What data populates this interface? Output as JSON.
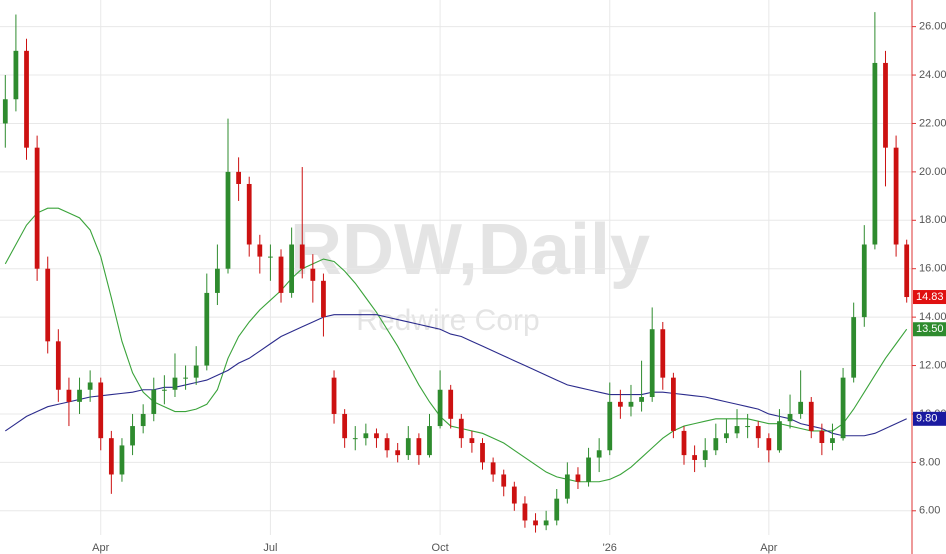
{
  "chart_data": {
    "type": "candlestick",
    "watermark": "RDW,Daily",
    "subtitle": "Redwire Corp",
    "categories": [
      null,
      null,
      null,
      null,
      null,
      null,
      null,
      null,
      null,
      "Apr",
      null,
      null,
      null,
      null,
      null,
      null,
      null,
      null,
      null,
      null,
      null,
      null,
      null,
      null,
      null,
      "Jul",
      null,
      null,
      null,
      null,
      null,
      null,
      null,
      null,
      null,
      null,
      null,
      null,
      null,
      null,
      null,
      "Oct",
      null,
      null,
      null,
      null,
      null,
      null,
      null,
      null,
      null,
      null,
      null,
      null,
      null,
      null,
      null,
      "'26",
      null,
      null,
      null,
      null,
      null,
      null,
      null,
      null,
      null,
      null,
      null,
      null,
      null,
      null,
      "Apr",
      null,
      null,
      null,
      null,
      null,
      null,
      null,
      null,
      null,
      null,
      null,
      null,
      null
    ],
    "open": [
      22,
      23,
      25,
      21,
      16,
      13,
      11,
      10.5,
      11,
      11.3,
      9,
      7.5,
      8.7,
      9.5,
      10,
      11,
      11,
      11.5,
      11.5,
      12,
      15,
      16,
      20,
      19.5,
      17,
      16.5,
      16.5,
      15,
      17,
      16,
      15.5,
      11.5,
      10,
      9,
      9,
      9.2,
      9,
      8.5,
      8.3,
      9,
      8.3,
      9.5,
      11,
      9.8,
      9,
      8.8,
      8,
      7.5,
      7,
      6.3,
      5.6,
      5.4,
      5.6,
      6.5,
      7.5,
      7.2,
      8.2,
      8.5,
      10.5,
      10.3,
      10.5,
      10.7,
      13.5,
      11.5,
      9.3,
      8.3,
      8.1,
      8.5,
      9,
      9.2,
      9.5,
      9.5,
      9,
      8.5,
      9.7,
      10,
      10.5,
      9.3,
      8.8,
      9,
      11.5,
      14,
      17,
      24.5,
      21,
      17
    ],
    "high": [
      24,
      26.5,
      25.5,
      21.5,
      16.5,
      13.5,
      11.5,
      11.5,
      11.8,
      11.5,
      9.3,
      9,
      10,
      10.4,
      11.5,
      11.6,
      12.5,
      12,
      12.8,
      15.8,
      17,
      22.2,
      20.6,
      19.8,
      17.4,
      17,
      16.8,
      17.7,
      20.2,
      16.6,
      15.8,
      11.8,
      10.2,
      9.5,
      9.6,
      9.4,
      9.2,
      8.8,
      9.5,
      9.2,
      10,
      11.8,
      11.2,
      10,
      9.3,
      9,
      8.2,
      7.7,
      7.2,
      6.6,
      5.9,
      6,
      6.9,
      8,
      7.8,
      8.6,
      9,
      11.3,
      11,
      11.2,
      12.2,
      14.4,
      13.8,
      11.7,
      9.5,
      8.7,
      9,
      9.6,
      9.8,
      10.2,
      10,
      9.7,
      9.2,
      10.2,
      10.8,
      11.8,
      10.7,
      9.6,
      9.6,
      11.9,
      14.6,
      17.8,
      26.6,
      25,
      21.5,
      17.2
    ],
    "low": [
      21,
      22.5,
      20.5,
      15.5,
      12.5,
      10.5,
      9.5,
      10,
      10.5,
      8.5,
      6.7,
      7.2,
      8.3,
      9.2,
      9.7,
      10.4,
      10.7,
      11,
      11.2,
      11.8,
      14.5,
      15.8,
      18.8,
      16.5,
      15.8,
      15.5,
      14.6,
      14.8,
      15.6,
      14.6,
      13.2,
      9.6,
      8.6,
      8.5,
      8.7,
      8.6,
      8.2,
      8,
      8.1,
      7.9,
      8.2,
      9.4,
      9.4,
      8.6,
      8.4,
      7.7,
      7.2,
      6.6,
      6,
      5.3,
      5.1,
      5.2,
      5.4,
      6.3,
      6.9,
      7,
      7.6,
      8.3,
      9.8,
      9.9,
      10.1,
      10.5,
      11,
      9,
      7.9,
      7.6,
      7.8,
      8.3,
      8.8,
      9,
      9,
      8.6,
      8,
      8.4,
      9.4,
      9.8,
      9,
      8.3,
      8.5,
      8.9,
      11.3,
      13.6,
      16.8,
      19.4,
      16.5,
      14.6
    ],
    "close": [
      23,
      25,
      21,
      16,
      13,
      11,
      10.5,
      11,
      11.3,
      9,
      7.5,
      8.7,
      9.5,
      10,
      11,
      11,
      11.5,
      11.5,
      12,
      15,
      16,
      20,
      19.5,
      17,
      16.5,
      16.5,
      15,
      17,
      16,
      15.5,
      14,
      10,
      9,
      9,
      9.2,
      9,
      8.5,
      8.3,
      9,
      8.3,
      9.5,
      11,
      9.8,
      9,
      8.8,
      8,
      7.5,
      7,
      6.3,
      5.6,
      5.4,
      5.6,
      6.5,
      7.5,
      7.2,
      8.2,
      8.5,
      10.5,
      10.3,
      10.5,
      10.7,
      13.5,
      11.5,
      9.3,
      8.3,
      8.1,
      8.5,
      9,
      9.2,
      9.5,
      9.5,
      9,
      8.5,
      9.7,
      10,
      10.5,
      9.3,
      8.8,
      9,
      11.5,
      14,
      17,
      24.5,
      21,
      17,
      14.83
    ],
    "up_color": "#2e8b2e",
    "down_color": "#cc1111",
    "series": [
      {
        "color": "#3aa33a",
        "values": [
          16.2,
          17,
          17.8,
          18.3,
          18.5,
          18.5,
          18.3,
          18.1,
          17.6,
          16.5,
          14.8,
          13,
          11.7,
          10.9,
          10.5,
          10.3,
          10.1,
          10.1,
          10.2,
          10.4,
          11,
          12.3,
          13.2,
          13.8,
          14.3,
          14.7,
          15.1,
          15.6,
          16,
          16.2,
          16.4,
          16.3,
          15.9,
          15.4,
          14.8,
          14.2,
          13.5,
          12.8,
          12,
          11.2,
          10.5,
          9.9,
          9.5,
          9.4,
          9.3,
          9.2,
          9,
          8.8,
          8.5,
          8.2,
          7.9,
          7.6,
          7.4,
          7.3,
          7.2,
          7.2,
          7.2,
          7.3,
          7.5,
          7.8,
          8.2,
          8.6,
          9,
          9.3,
          9.5,
          9.6,
          9.7,
          9.8,
          9.8,
          9.8,
          9.8,
          9.7,
          9.6,
          9.6,
          9.5,
          9.4,
          9.3,
          9.3,
          9.3,
          9.6,
          10.2,
          10.9,
          11.6,
          12.3,
          12.9,
          13.5
        ]
      },
      {
        "color": "#2b2b8c",
        "values": [
          9.3,
          9.6,
          9.9,
          10.1,
          10.3,
          10.4,
          10.5,
          10.6,
          10.7,
          10.75,
          10.8,
          10.85,
          10.9,
          11,
          11,
          11.1,
          11.1,
          11.2,
          11.3,
          11.4,
          11.6,
          11.8,
          12.1,
          12.3,
          12.6,
          12.9,
          13.2,
          13.4,
          13.6,
          13.8,
          14,
          14.1,
          14.1,
          14.1,
          14.1,
          14.1,
          14,
          13.9,
          13.8,
          13.7,
          13.6,
          13.5,
          13.3,
          13.2,
          13,
          12.8,
          12.6,
          12.4,
          12.2,
          12,
          11.8,
          11.6,
          11.4,
          11.2,
          11.1,
          11,
          10.9,
          10.8,
          10.8,
          10.8,
          10.8,
          10.9,
          10.9,
          10.85,
          10.8,
          10.75,
          10.7,
          10.6,
          10.5,
          10.4,
          10.3,
          10.2,
          10,
          9.9,
          9.8,
          9.6,
          9.5,
          9.4,
          9.2,
          9.1,
          9.1,
          9.1,
          9.2,
          9.4,
          9.6,
          9.8
        ]
      }
    ],
    "price_tags": [
      {
        "value": 14.83,
        "label": "14.83",
        "color": "#e01010"
      },
      {
        "value": 13.5,
        "label": "13.50",
        "color": "#2e8b2e"
      },
      {
        "value": 9.8,
        "label": "9.80",
        "color": "#1a1aa0"
      }
    ],
    "ylim": [
      5.0,
      27.1
    ],
    "yticks": [
      {
        "value": 6,
        "label": "6.00"
      },
      {
        "value": 8,
        "label": "8.00"
      },
      {
        "value": 10,
        "label": "10.00"
      },
      {
        "value": 12,
        "label": "12.00"
      },
      {
        "value": 14,
        "label": "14.00"
      },
      {
        "value": 16,
        "label": "16.00"
      },
      {
        "value": 18,
        "label": "18.00"
      },
      {
        "value": 20,
        "label": "20.00"
      },
      {
        "value": 22,
        "label": "22.00"
      },
      {
        "value": 24,
        "label": "24.00"
      },
      {
        "value": 26,
        "label": "26.00"
      }
    ],
    "grid": true
  }
}
